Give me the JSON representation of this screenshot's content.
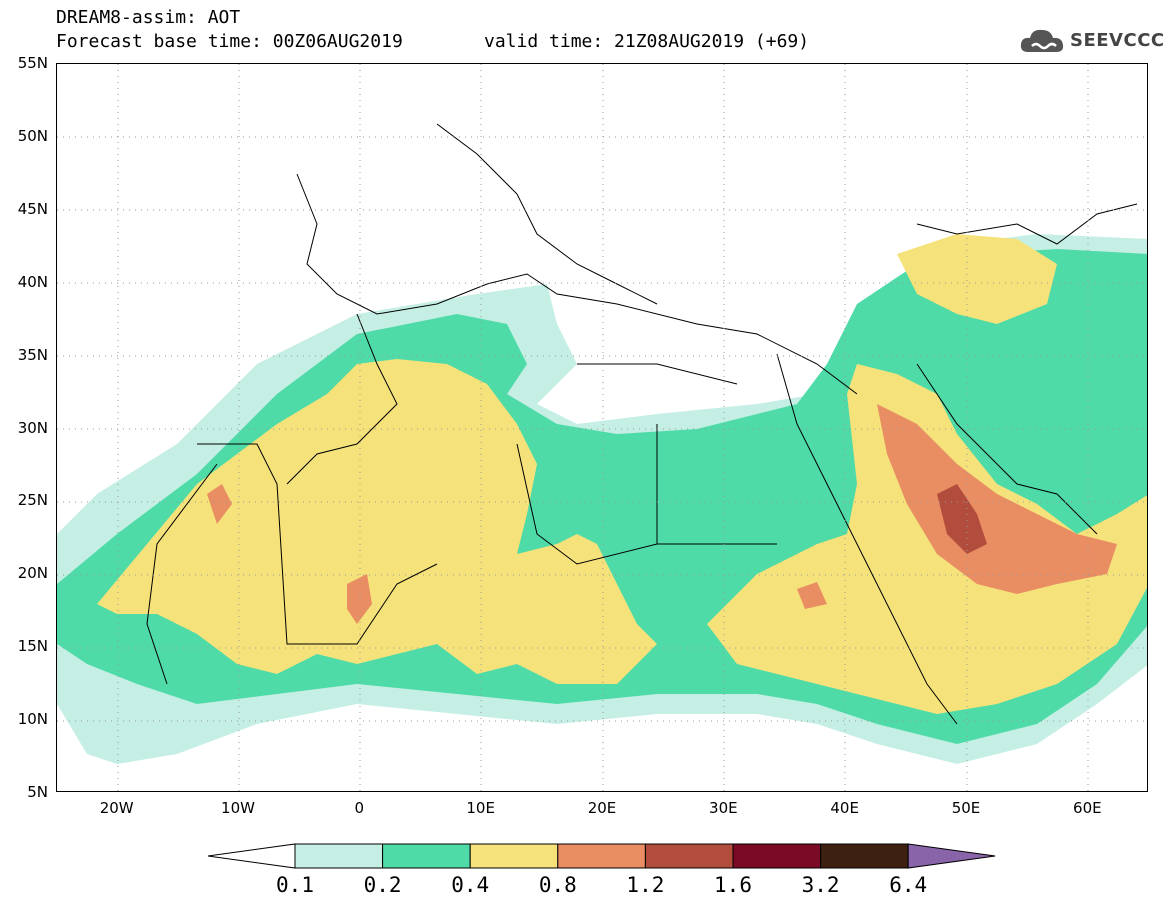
{
  "header": {
    "line1": "DREAM8-assim: AOT",
    "line2": "Forecast base time: 00Z06AUG2019",
    "line3": "valid time: 21Z08AUG2019 (+69)",
    "logo_text": "SEEVCCC"
  },
  "map": {
    "lat_labels": [
      "55N",
      "50N",
      "45N",
      "40N",
      "35N",
      "30N",
      "25N",
      "20N",
      "15N",
      "10N",
      "5N"
    ],
    "lon_labels": [
      "20W",
      "10W",
      "0",
      "10E",
      "20E",
      "30E",
      "40E",
      "50E",
      "60E"
    ],
    "lat_range": [
      5,
      55
    ],
    "lon_range": [
      -25,
      65
    ]
  },
  "colorbar": {
    "labels": [
      "0.1",
      "0.2",
      "0.4",
      "0.8",
      "1.2",
      "1.6",
      "3.2",
      "6.4"
    ],
    "colors": [
      "#c5efe5",
      "#4fdba8",
      "#f5e27a",
      "#e98d62",
      "#b24d3d",
      "#7a0a26",
      "#3d2010",
      "#8a64a8"
    ]
  }
}
